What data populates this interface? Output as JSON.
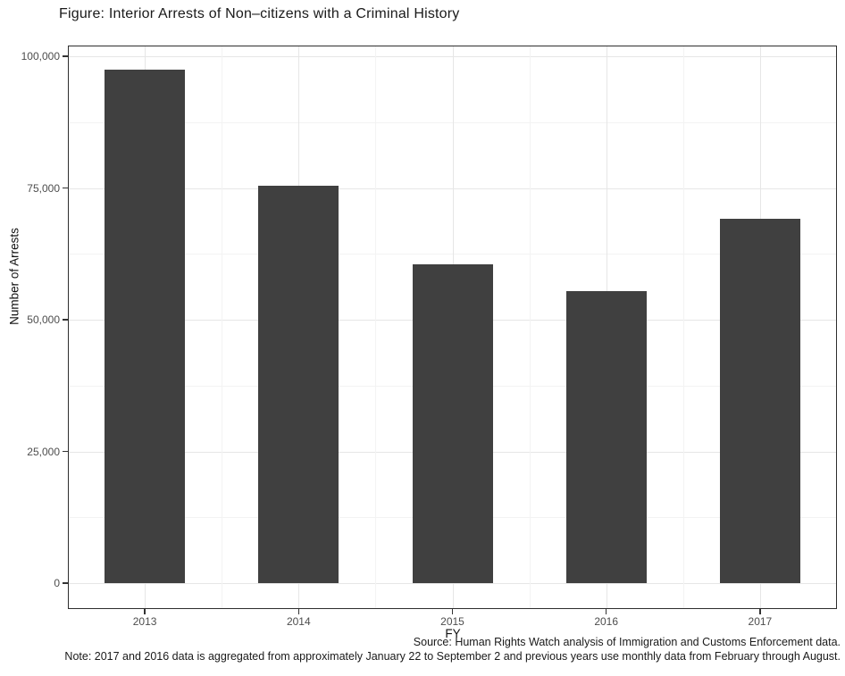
{
  "chart_data": {
    "type": "bar",
    "title": "Figure: Interior Arrests of Non–citizens with a Criminal History",
    "xlabel": "FY",
    "ylabel": "Number of Arrests",
    "categories": [
      "2013",
      "2014",
      "2015",
      "2016",
      "2017"
    ],
    "values": [
      97500,
      75400,
      60500,
      55400,
      69200
    ],
    "ylim": [
      0,
      100000
    ],
    "yticks": [
      0,
      25000,
      50000,
      75000,
      100000
    ],
    "ytick_labels": [
      "0",
      "25,000",
      "50,000",
      "75,000",
      "100,000"
    ],
    "grid": true,
    "legend": "none",
    "caption_source": "Source: Human Rights Watch analysis of Immigration and Customs Enforcement data.",
    "caption_note": "Note: 2017 and 2016 data is aggregated from approximately January 22 to September 2 and previous years use monthly data from February through August.",
    "colors": {
      "bar_fill": "#404040",
      "panel_border": "#2e2e2e",
      "grid_major": "#e6e6e6",
      "grid_minor": "#f3f3f3",
      "tick_label": "#4d4d4d",
      "text": "#1a1a1a"
    }
  }
}
